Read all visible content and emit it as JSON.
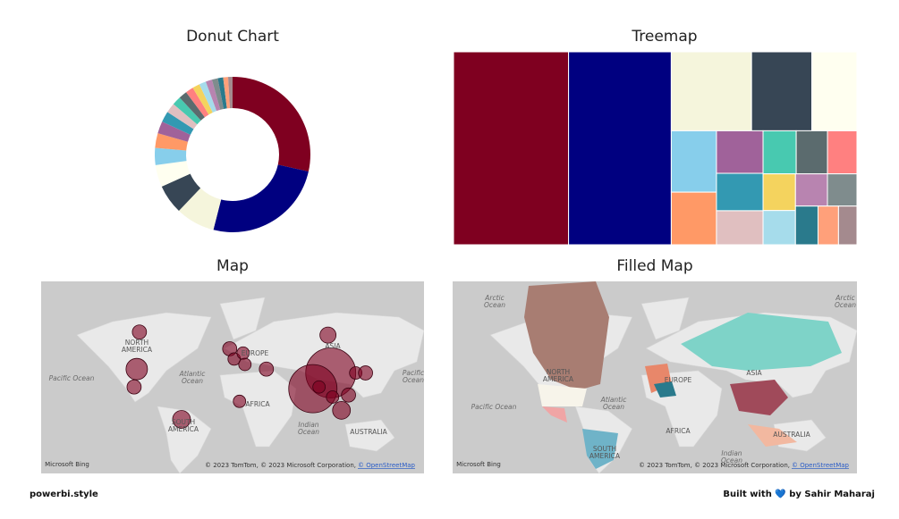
{
  "chart_data": [
    {
      "type": "pie",
      "title": "Donut Chart",
      "donut": true,
      "values": [
        28,
        25,
        8,
        6,
        4.5,
        3.5,
        3,
        2.5,
        2.2,
        2,
        1.8,
        1.7,
        1.6,
        1.5,
        1.4,
        1.3,
        1.2,
        1.1,
        1,
        0.9
      ],
      "colors": [
        "#7f0020",
        "#000080",
        "#f5f5dc",
        "#374655",
        "#fffff0",
        "#87ceeb",
        "#ff9966",
        "#a0629a",
        "#3399b2",
        "#e0bfc0",
        "#48c9b0",
        "#5b6b6e",
        "#ff8080",
        "#f4d35e",
        "#a6dceb",
        "#b884b0",
        "#7f8c8d",
        "#2a7a8c",
        "#ffa07a",
        "#a48a8e"
      ]
    },
    {
      "type": "treemap",
      "title": "Treemap",
      "values": [
        28,
        25,
        8,
        6,
        4.5,
        3.5,
        3,
        2.5,
        2.2,
        2,
        1.8,
        1.7,
        1.6,
        1.5,
        1.4,
        1.3,
        1.2,
        1.1,
        1,
        0.9
      ],
      "colors": [
        "#7f0020",
        "#000080",
        "#f5f5dc",
        "#374655",
        "#fffff0",
        "#87ceeb",
        "#ff9966",
        "#a0629a",
        "#3399b2",
        "#e0bfc0",
        "#48c9b0",
        "#5b6b6e",
        "#ff8080",
        "#f4d35e",
        "#a6dceb",
        "#b884b0",
        "#7f8c8d",
        "#2a7a8c",
        "#ffa07a",
        "#a48a8e"
      ]
    },
    {
      "type": "bubble-map",
      "title": "Map",
      "color": "#7f0020",
      "xlim": [
        -170,
        190
      ],
      "ylim": [
        -45,
        64
      ],
      "x": [
        -77.6,
        -80.1,
        -82.6,
        -38,
        7.3,
        11.5,
        19.9,
        21.6,
        41.8,
        99.7,
        102.3,
        85.5,
        125.8,
        135,
        91.3,
        16.5,
        112.4,
        119,
        104
      ],
      "y": [
        43.6,
        22,
        10,
        -12.5,
        34.5,
        28.4,
        32,
        25,
        22,
        42,
        19.5,
        8.8,
        19.5,
        19.5,
        10,
        0,
        -6.3,
        4.4,
        3
      ],
      "sizes": [
        7,
        16,
        7,
        11,
        7,
        5.4,
        5.4,
        5.4,
        7,
        9,
        87,
        81,
        5.4,
        7,
        5.4,
        5.4,
        11,
        7,
        5.4
      ],
      "annotations": [
        "NORTH AMERICA",
        "Pacific Ocean",
        "Atlantic Ocean",
        "EUROPE",
        "ASIA",
        "AFRICA",
        "SOUTH AMERICA",
        "Indian Ocean",
        "AUSTRALIA",
        "Pacific Ocean",
        "Microsoft Bing"
      ],
      "attribution": [
        "© 2023 TomTom, © 2023 Microsoft Corporation,",
        "© OpenStreetMap"
      ]
    },
    {
      "type": "filled-map",
      "title": "Filled Map",
      "annotations": [
        "Arctic Ocean",
        "Arctic Ocean",
        "NORTH AMERICA",
        "Atlantic Ocean",
        "Pacific Ocean",
        "EUROPE",
        "ASIA",
        "AFRICA",
        "SOUTH AMERICA",
        "Indian Ocean",
        "AUSTRALIA",
        "Microsoft Bing"
      ],
      "attribution": [
        "© 2023 TomTom, © 2023 Microsoft Corporation,",
        "© OpenStreetMap"
      ]
    }
  ],
  "footer": {
    "left": "powerbi.style",
    "right": "Built with 💙 by Sahir Maharaj"
  }
}
